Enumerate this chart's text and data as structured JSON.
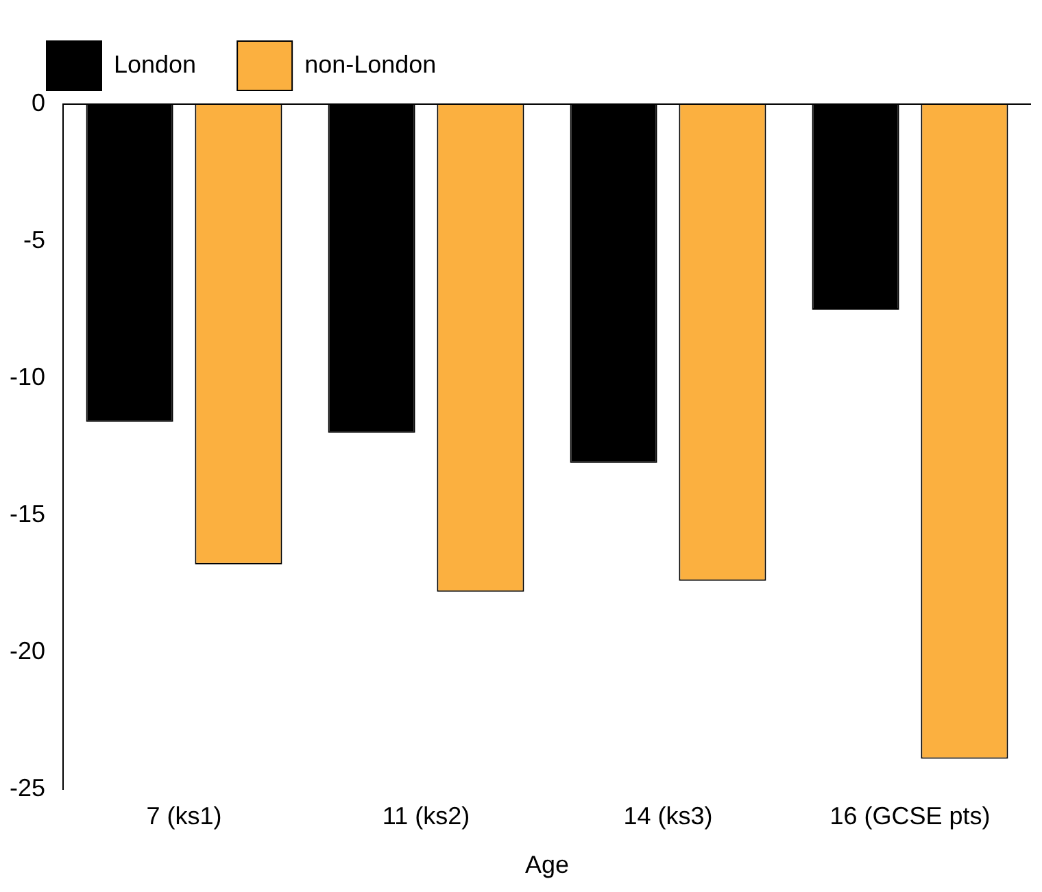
{
  "chart_data": {
    "type": "bar",
    "xlabel": "Age",
    "categories": [
      "7 (ks1)",
      "11 (ks2)",
      "14 (ks3)",
      "16 (GCSE pts)"
    ],
    "series": [
      {
        "name": "London",
        "color": "#000000",
        "values": [
          -11.6,
          -12.0,
          -13.1,
          -7.5
        ]
      },
      {
        "name": "non-London",
        "color": "#fbb040",
        "values": [
          -16.8,
          -17.8,
          -17.4,
          -23.9
        ]
      }
    ],
    "ylim": [
      -25,
      0
    ],
    "yticks": [
      -25,
      -20,
      -15,
      -10,
      -5,
      0
    ],
    "grid": false,
    "legend": "top left",
    "ref_lines": [
      {
        "axis": "y",
        "value": 0
      }
    ]
  }
}
